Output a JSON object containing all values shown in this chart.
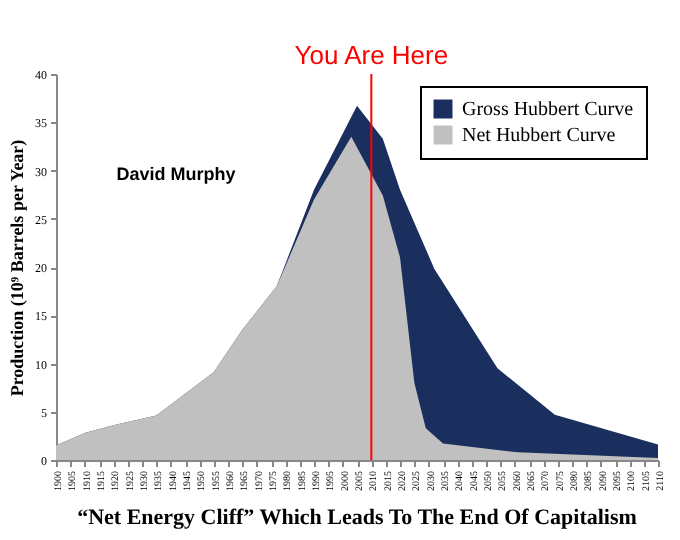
{
  "chart_data": {
    "type": "area",
    "title": "“Net Energy Cliff” Which Leads To The End Of Capitalism",
    "ylabel": "Production (10⁹ Barrels per Year)",
    "annotations": [
      "David Murphy"
    ],
    "series": [
      {
        "name": "Gross Hubbert Curve",
        "color": "#1b2f5e",
        "x": [
          1900,
          1910,
          1920,
          1935,
          1955,
          1965,
          1977,
          1990,
          2005,
          2014,
          2020,
          2032,
          2054,
          2074,
          2110
        ],
        "values": [
          1.5,
          2.8,
          3.6,
          4.6,
          9.1,
          13.5,
          18,
          28,
          36.7,
          33.3,
          28,
          19.8,
          9.5,
          4.7,
          1.6
        ]
      },
      {
        "name": "Net Hubbert Curve",
        "color": "#c0c0c0",
        "x": [
          1900,
          1910,
          1920,
          1935,
          1955,
          1965,
          1977,
          1990,
          2003,
          2014,
          2020,
          2025,
          2029,
          2035,
          2061,
          2110
        ],
        "values": [
          1.5,
          2.8,
          3.6,
          4.6,
          9.1,
          13.5,
          18,
          27,
          33.5,
          27.4,
          21,
          8,
          3.3,
          1.7,
          0.8,
          0.2
        ]
      }
    ],
    "xlim": [
      1900,
      2110
    ],
    "xticks": [
      1900,
      1905,
      1910,
      1915,
      1920,
      1925,
      1930,
      1935,
      1940,
      1945,
      1950,
      1955,
      1960,
      1965,
      1970,
      1975,
      1980,
      1985,
      1990,
      1995,
      2000,
      2005,
      2010,
      2015,
      2020,
      2025,
      2030,
      2035,
      2040,
      2045,
      2050,
      2055,
      2060,
      2065,
      2070,
      2075,
      2080,
      2085,
      2090,
      2095,
      2100,
      2105,
      2110
    ],
    "ylim": [
      0,
      40
    ],
    "yticks": [
      0,
      5,
      10,
      15,
      20,
      25,
      30,
      35,
      40
    ],
    "ref_lines": [
      {
        "axis": "x",
        "value": 2010,
        "label": "You Are Here",
        "color": "#ff0000"
      }
    ],
    "legend": "top right",
    "grid": false
  }
}
